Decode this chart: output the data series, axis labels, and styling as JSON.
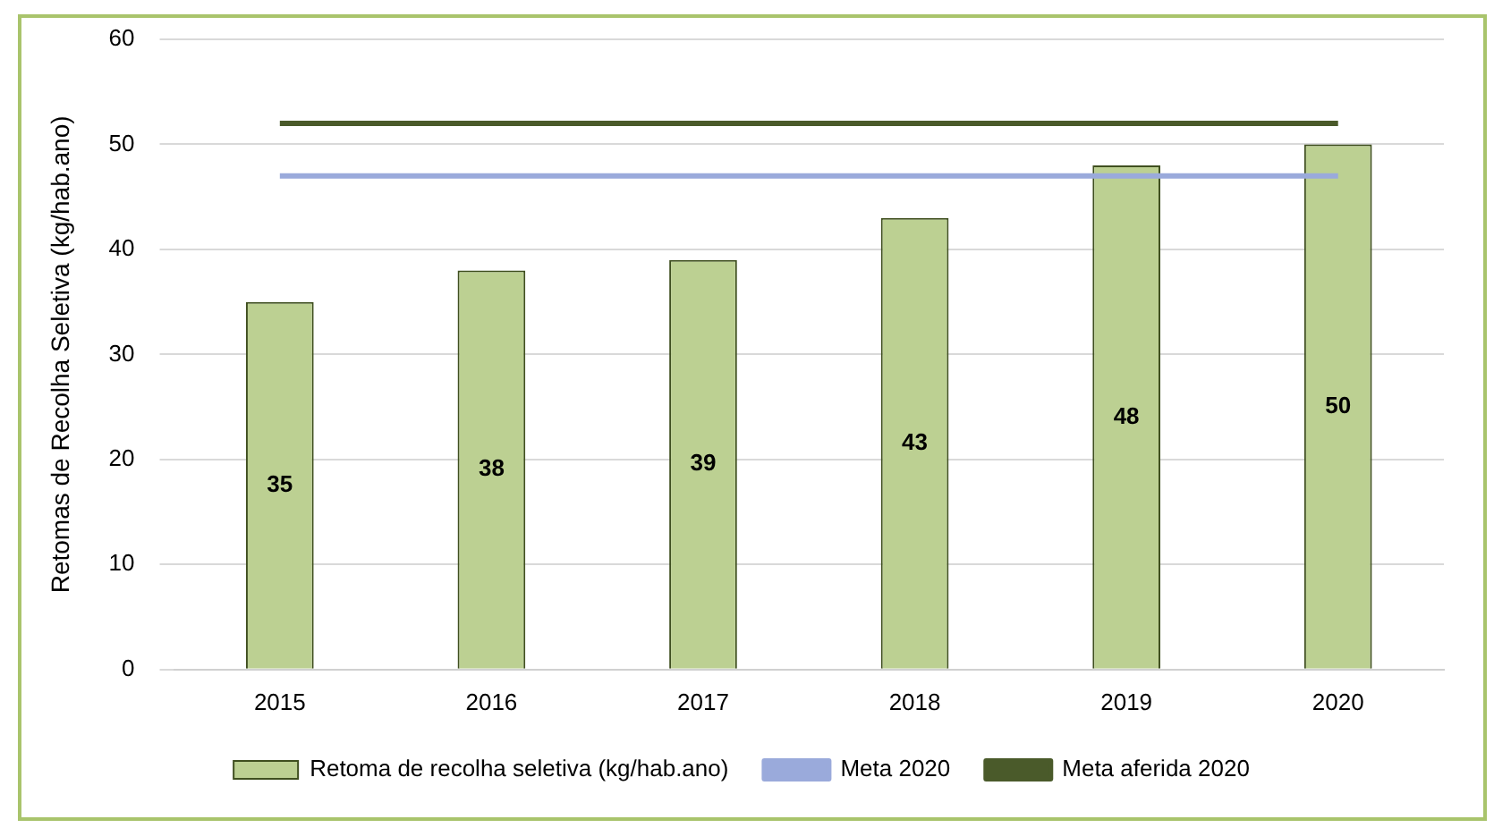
{
  "chart_data": {
    "type": "bar",
    "ylabel": "Retomas de Recolha Seletiva (kg/hab.ano)",
    "categories": [
      "2015",
      "2016",
      "2017",
      "2018",
      "2019",
      "2020"
    ],
    "series": [
      {
        "name": "Retoma de recolha seletiva (kg/hab.ano)",
        "color": "#bcd092",
        "values": [
          35,
          38,
          39,
          43,
          48,
          50
        ],
        "value_labels": [
          "35",
          "38",
          "39",
          "43",
          "48",
          "50"
        ]
      },
      {
        "name": "Meta 2020",
        "type": "line",
        "color": "#9aaadb",
        "values": [
          47,
          47,
          47,
          47,
          47,
          47
        ]
      },
      {
        "name": "Meta aferida 2020",
        "type": "line",
        "color": "#4a5a2a",
        "values": [
          52,
          52,
          52,
          52,
          52,
          52
        ]
      }
    ],
    "ylim": [
      0,
      60
    ],
    "yticks": [
      0,
      10,
      20,
      30,
      40,
      50,
      60
    ],
    "grid": "y",
    "legend": "bottom",
    "marker": "none"
  }
}
